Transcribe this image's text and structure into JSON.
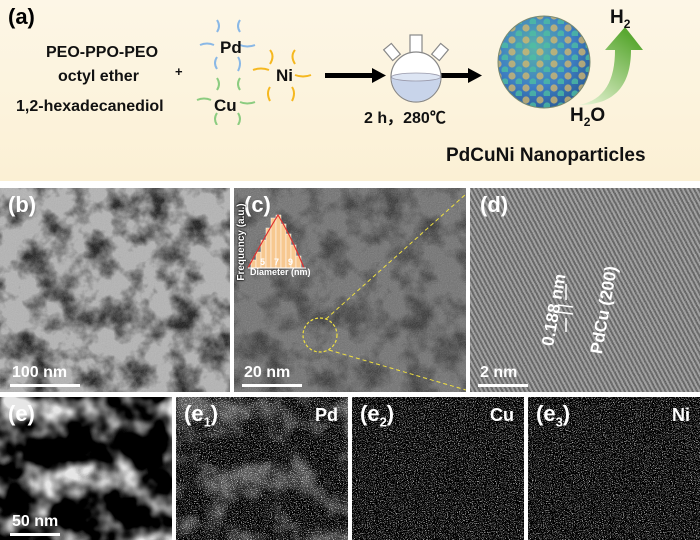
{
  "panel_a": {
    "label": "(a)",
    "reagent_1": "PEO-PPO-PEO",
    "reagent_2": "octyl ether",
    "plus": "+",
    "reagent_3": "1,2-hexadecanediol",
    "metals": [
      "Pd",
      "Ni",
      "Cu"
    ],
    "condition": "2 h，280℃",
    "h2": "H",
    "h2_sub": "2",
    "h2o_h": "H",
    "h2o_sub": "2",
    "h2o_o": "O",
    "product": "PdCuNi Nanoparticles",
    "metal_colors": {
      "Pd": "#8ab8e6",
      "Ni": "#f5b820",
      "Cu": "#8ccc80"
    }
  },
  "panel_b": {
    "label": "(b)",
    "scale": "100 nm"
  },
  "panel_c": {
    "label": "(c)",
    "scale": "20 nm",
    "inset": {
      "ylabel": "Frequency (a.u.)",
      "xlabel": "Diameter (nm)",
      "ticks": [
        "5",
        "7",
        "9"
      ]
    }
  },
  "panel_d": {
    "label": "(d)",
    "scale": "2 nm",
    "spacing": "0.188 nm",
    "plane": "PdCu (200)"
  },
  "panel_e": [
    {
      "label": "(e)",
      "sub": "",
      "element": "",
      "scale": "50 nm",
      "color": "#ffffff"
    },
    {
      "label": "(e",
      "sub": "1",
      "element": "Pd",
      "color": "#e6d020"
    },
    {
      "label": "(e",
      "sub": "2",
      "element": "Cu",
      "color": "#30d020"
    },
    {
      "label": "(e",
      "sub": "3",
      "element": "Ni",
      "color": "#e01818"
    }
  ]
}
